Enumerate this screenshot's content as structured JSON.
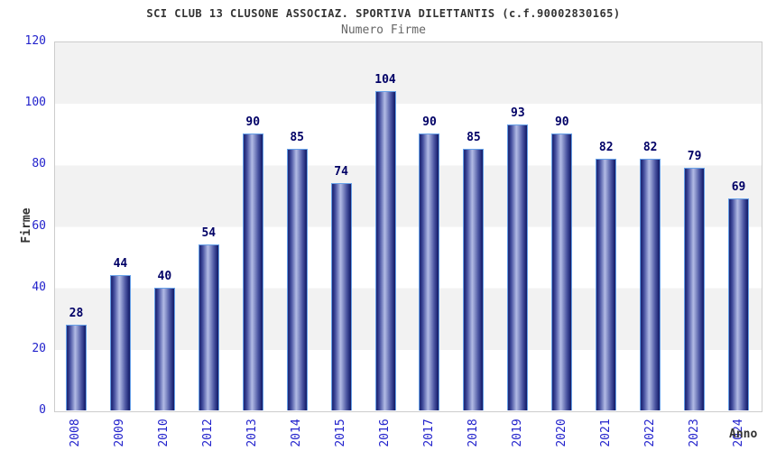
{
  "title": "SCI CLUB 13 CLUSONE ASSOCIAZ. SPORTIVA DILETTANTIS (c.f.90002830165)",
  "subtitle": "Numero Firme",
  "chart_data": {
    "type": "bar",
    "title": "SCI CLUB 13 CLUSONE ASSOCIAZ. SPORTIVA DILETTANTIS (c.f.90002830165)",
    "subtitle": "Numero Firme",
    "xlabel": "Anno",
    "ylabel": "Firme",
    "categories": [
      "2008",
      "2009",
      "2010",
      "2012",
      "2013",
      "2014",
      "2015",
      "2016",
      "2017",
      "2018",
      "2019",
      "2020",
      "2021",
      "2022",
      "2023",
      "2024"
    ],
    "values": [
      28,
      44,
      40,
      54,
      90,
      85,
      74,
      104,
      90,
      85,
      93,
      90,
      82,
      82,
      79,
      69
    ],
    "ylim": [
      0,
      120
    ],
    "y_ticks": [
      0,
      20,
      40,
      60,
      80,
      100,
      120
    ],
    "legend_position": "none",
    "grid": "alternating-horizontal-bands",
    "colors": {
      "bar_dark": "#1e2776",
      "bar_highlight": "#b2bae4",
      "bar_border": "#66a0e8",
      "axis_tick_label": "#2222cc",
      "bar_value_label": "#000066",
      "title": "#333333",
      "subtitle": "#666666",
      "band_gray": "#f2f2f2",
      "band_white": "#ffffff",
      "plot_border": "#cccccc"
    }
  }
}
